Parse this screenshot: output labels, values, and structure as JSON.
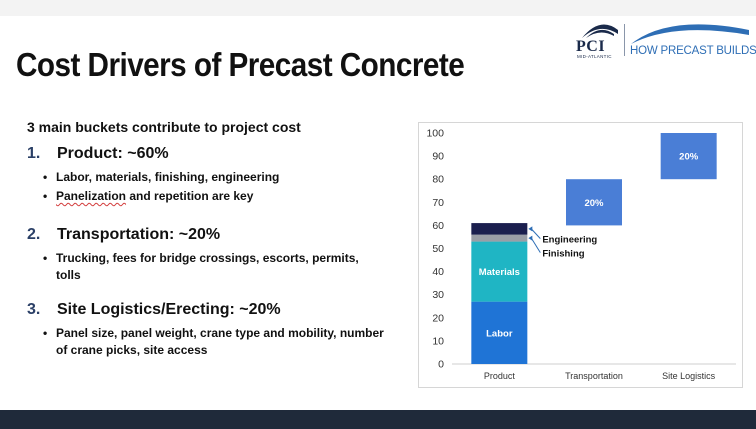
{
  "slide": {
    "title": "Cost Drivers of Precast Concrete",
    "logos": {
      "pci_text": "PCI",
      "pci_sub": "MID-ATLANTIC",
      "tagline": "HOW PRECAST BUILDS."
    },
    "intro": "3 main buckets contribute to project cost",
    "sections": [
      {
        "number": "1.",
        "heading": "Product: ~60%",
        "bullets": [
          {
            "pre": "",
            "marked": "",
            "text": "Labor, materials, finishing, engineering"
          },
          {
            "pre": "",
            "marked": "Panelization",
            "text": " and repetition are key"
          }
        ]
      },
      {
        "number": "2.",
        "heading": "Transportation:  ~20%",
        "bullets": [
          {
            "pre": "",
            "marked": "",
            "text": "Trucking, fees for bridge crossings, escorts, permits, tolls"
          }
        ]
      },
      {
        "number": "3.",
        "heading": "Site Logistics/Erecting:  ~20%",
        "bullets": [
          {
            "pre": "",
            "marked": "",
            "text": "Panel size, panel weight, crane type and mobility, number of crane picks, site access"
          }
        ]
      }
    ]
  },
  "colors": {
    "labor": "#1f74d6",
    "materials": "#1fb5c4",
    "finishing": "#9a9ea6",
    "engineering": "#1b1f4e",
    "transportation": "#4a7ed6",
    "site_logistics": "#4a7ed6",
    "accent_number": "#2a3f66",
    "footer": "#1f2a3a"
  },
  "chart_data": {
    "type": "bar",
    "subtype": "waterfall-stacked",
    "categories": [
      "Product",
      "Transportation",
      "Site Logistics"
    ],
    "ylim": [
      0,
      100
    ],
    "yticks": [
      0,
      10,
      20,
      30,
      40,
      50,
      60,
      70,
      80,
      90,
      100
    ],
    "grid": false,
    "segments": [
      {
        "category": "Product",
        "name": "Labor",
        "start": 0,
        "end": 27,
        "label": "Labor",
        "color_key": "labor"
      },
      {
        "category": "Product",
        "name": "Materials",
        "start": 27,
        "end": 53,
        "label": "Materials",
        "color_key": "materials"
      },
      {
        "category": "Product",
        "name": "Finishing",
        "start": 53,
        "end": 56,
        "label": "",
        "color_key": "finishing"
      },
      {
        "category": "Product",
        "name": "Engineering",
        "start": 56,
        "end": 61,
        "label": "",
        "color_key": "engineering"
      },
      {
        "category": "Transportation",
        "name": "Transportation",
        "start": 60,
        "end": 80,
        "label": "20%",
        "color_key": "transportation"
      },
      {
        "category": "Site Logistics",
        "name": "Site Logistics",
        "start": 80,
        "end": 100,
        "label": "20%",
        "color_key": "site_logistics"
      }
    ],
    "annotations": [
      {
        "text": "Engineering",
        "points_to": "Engineering"
      },
      {
        "text": "Finishing",
        "points_to": "Finishing"
      }
    ]
  }
}
